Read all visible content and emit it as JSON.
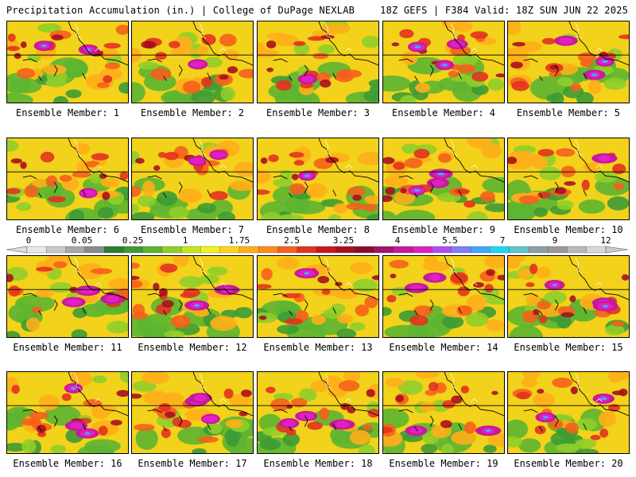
{
  "header": {
    "left": "Precipitation Accumulation (in.) | College of DuPage NEXLAB",
    "right": "18Z GEFS | F384 Valid: 18Z SUN JUN 22 2025"
  },
  "panel_label_prefix": "Ensemble Member:",
  "members": [
    {
      "label": "Ensemble Member: 1",
      "mean_level": 0.55,
      "hot_spots": 2
    },
    {
      "label": "Ensemble Member: 2",
      "mean_level": 0.45,
      "hot_spots": 1
    },
    {
      "label": "Ensemble Member: 3",
      "mean_level": 0.5,
      "hot_spots": 1
    },
    {
      "label": "Ensemble Member: 4",
      "mean_level": 0.65,
      "hot_spots": 3
    },
    {
      "label": "Ensemble Member: 5",
      "mean_level": 0.65,
      "hot_spots": 3
    },
    {
      "label": "Ensemble Member: 6",
      "mean_level": 0.45,
      "hot_spots": 1
    },
    {
      "label": "Ensemble Member: 7",
      "mean_level": 0.6,
      "hot_spots": 2
    },
    {
      "label": "Ensemble Member: 8",
      "mean_level": 0.45,
      "hot_spots": 1
    },
    {
      "label": "Ensemble Member: 9",
      "mean_level": 0.65,
      "hot_spots": 3
    },
    {
      "label": "Ensemble Member: 10",
      "mean_level": 0.45,
      "hot_spots": 1
    },
    {
      "label": "Ensemble Member: 11",
      "mean_level": 0.6,
      "hot_spots": 3
    },
    {
      "label": "Ensemble Member: 12",
      "mean_level": 0.55,
      "hot_spots": 2
    },
    {
      "label": "Ensemble Member: 13",
      "mean_level": 0.5,
      "hot_spots": 1
    },
    {
      "label": "Ensemble Member: 14",
      "mean_level": 0.6,
      "hot_spots": 2
    },
    {
      "label": "Ensemble Member: 15",
      "mean_level": 0.7,
      "hot_spots": 3
    },
    {
      "label": "Ensemble Member: 16",
      "mean_level": 0.7,
      "hot_spots": 3
    },
    {
      "label": "Ensemble Member: 17",
      "mean_level": 0.6,
      "hot_spots": 3
    },
    {
      "label": "Ensemble Member: 18",
      "mean_level": 0.65,
      "hot_spots": 3
    },
    {
      "label": "Ensemble Member: 19",
      "mean_level": 0.55,
      "hot_spots": 2
    },
    {
      "label": "Ensemble Member: 20",
      "mean_level": 0.6,
      "hot_spots": 2
    }
  ],
  "colorscale": {
    "tick_labels": [
      "0",
      "0.05",
      "0.25",
      "1",
      "1.75",
      "2.5",
      "3.25",
      "4",
      "5.5",
      "7",
      "9",
      "12"
    ],
    "colors": [
      "#e8e8e8",
      "#c8c8c8",
      "#a8a8a8",
      "#8a8a8a",
      "#2e7d32",
      "#3d9b35",
      "#5cb531",
      "#8fce2a",
      "#c6e61c",
      "#f2f21a",
      "#ffd21a",
      "#ffae19",
      "#ff8a1a",
      "#f5611c",
      "#e3321f",
      "#cc1620",
      "#a8101f",
      "#8b0b2f",
      "#a5126b",
      "#c71a9a",
      "#e01fc4",
      "#b14df0",
      "#7f7ff7",
      "#3fa9f5",
      "#1fd6f0",
      "#5fc7c7",
      "#8ba0a0",
      "#9a9a9a",
      "#b8b8b8",
      "#d8d8d8"
    ]
  }
}
